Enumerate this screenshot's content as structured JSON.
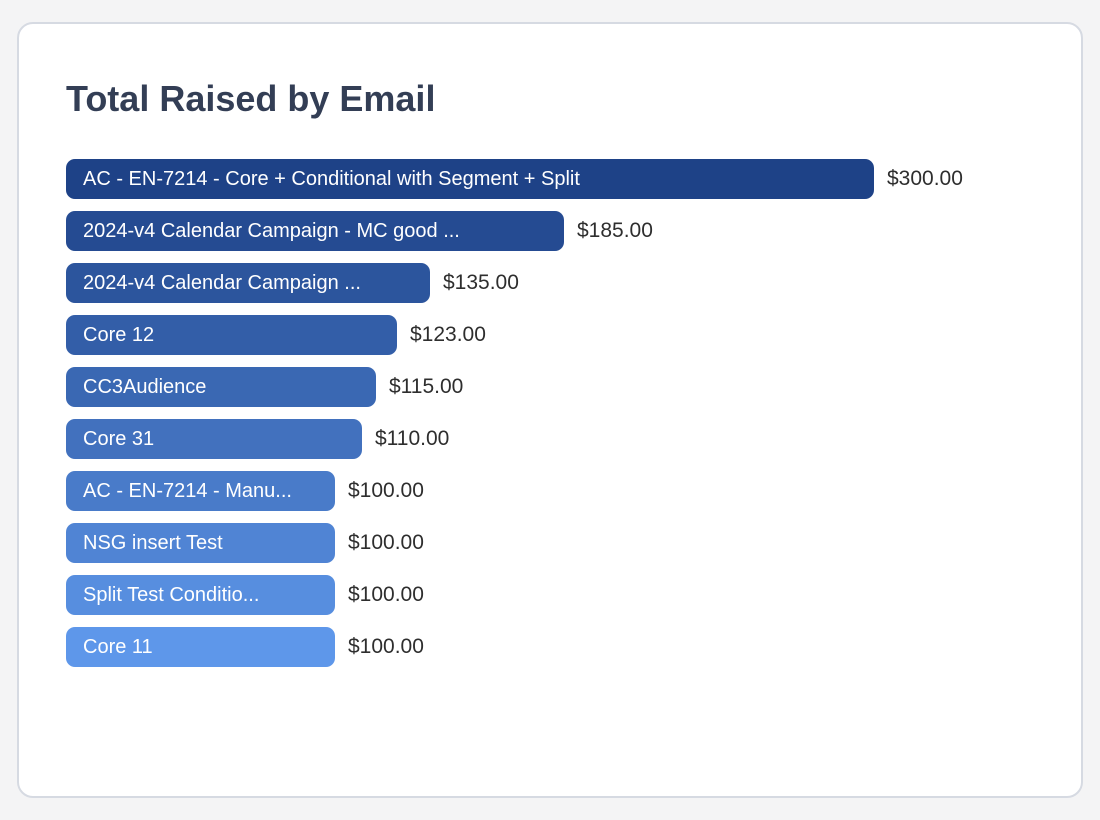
{
  "page": {
    "title": "Total Raised by Email"
  },
  "colors": {
    "page_background": "#f4f4f5",
    "card_background": "#ffffff",
    "card_border": "#d6dae2",
    "title_text": "#333e55",
    "value_text": "#2e2e2e",
    "bar_label_text": "#ffffff",
    "bar_colors": [
      "#1E4287",
      "#254B92",
      "#2C559D",
      "#335EA8",
      "#3A68B3",
      "#4271BE",
      "#497BC9",
      "#5084D4",
      "#578EDF",
      "#5E97EA"
    ]
  },
  "chart_data": {
    "type": "bar",
    "orientation": "horizontal",
    "title": "Total Raised by Email",
    "categories": [
      "AC - EN-7214 - Core + Conditional with Segment + Split",
      "2024-v4 Calendar Campaign - MC good ...",
      "2024-v4 Calendar Campaign ...",
      "Core 12",
      "CC3Audience",
      "Core 31",
      "AC - EN-7214 - Manu...",
      "NSG insert Test",
      "Split Test Conditio...",
      "Core 11"
    ],
    "values": [
      300,
      185,
      135,
      123,
      115,
      110,
      100,
      100,
      100,
      100
    ],
    "value_labels": [
      "$300.00",
      "$185.00",
      "$135.00",
      "$123.00",
      "$115.00",
      "$110.00",
      "$100.00",
      "$100.00",
      "$100.00",
      "$100.00"
    ],
    "xlim": [
      0,
      300
    ],
    "grid": false,
    "legend": false,
    "value_label_position": "right-of-bar",
    "xlabel": "",
    "ylabel": ""
  }
}
